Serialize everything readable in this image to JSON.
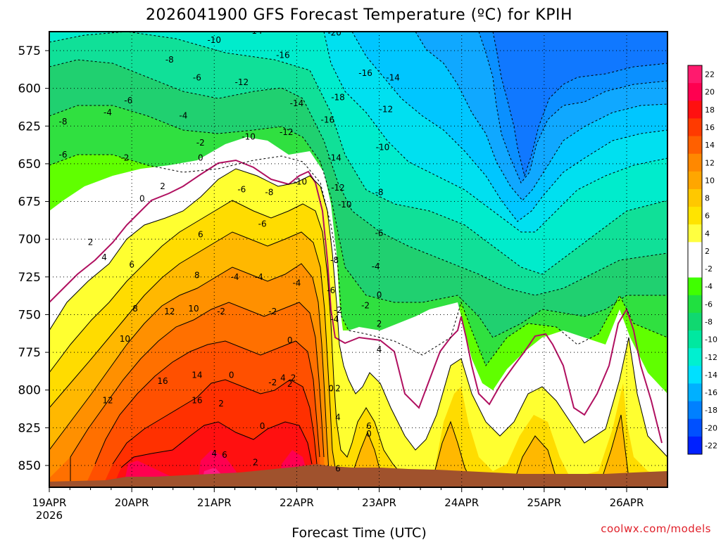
{
  "chart_data": {
    "type": "heatmap",
    "title": "2026041900 GFS Forecast Temperature (ºC) for KPIH",
    "xlabel": "Forecast Time (UTC)",
    "ylabel": "",
    "credit": "coolwx.com/models",
    "y_ticks": [
      "575",
      "600",
      "625",
      "650",
      "675",
      "700",
      "725",
      "750",
      "775",
      "800",
      "825",
      "850"
    ],
    "y_values": [
      575,
      600,
      625,
      650,
      675,
      700,
      725,
      750,
      775,
      800,
      825,
      850
    ],
    "ylim": [
      555,
      860
    ],
    "x_ticks": [
      "19APR",
      "20APR",
      "21APR",
      "22APR",
      "23APR",
      "24APR",
      "25APR",
      "26APR"
    ],
    "x_year": "2026",
    "xlim_hours": [
      0,
      180
    ],
    "colorbar_ticks": [
      "22",
      "20",
      "18",
      "16",
      "14",
      "12",
      "10",
      "8",
      "6",
      "4",
      "2",
      "-2",
      "-4",
      "-6",
      "-8",
      "-10",
      "-12",
      "-14",
      "-16",
      "-18",
      "-20",
      "-22"
    ],
    "colorbar_colors": [
      "#ff1a6e",
      "#ff0050",
      "#ff1010",
      "#ff3a00",
      "#ff6000",
      "#ff8800",
      "#ffa600",
      "#ffc800",
      "#ffe400",
      "#ffff40",
      "#ffffff",
      "#ffffff",
      "#40ff00",
      "#20e040",
      "#10d870",
      "#00e8a0",
      "#00f0d0",
      "#00e0ff",
      "#00b0ff",
      "#0080ff",
      "#0050ff",
      "#0020ff"
    ],
    "contour_labels": [
      {
        "v": "-14",
        "t": 60,
        "p": 562
      },
      {
        "v": "-20",
        "t": 83,
        "p": 563
      },
      {
        "v": "-10",
        "t": 48,
        "p": 568
      },
      {
        "v": "-16",
        "t": 68,
        "p": 578
      },
      {
        "v": "-8",
        "t": 35,
        "p": 581
      },
      {
        "v": "-16",
        "t": 92,
        "p": 590
      },
      {
        "v": "-6",
        "t": 43,
        "p": 593
      },
      {
        "v": "-12",
        "t": 56,
        "p": 596
      },
      {
        "v": "-14",
        "t": 100,
        "p": 593
      },
      {
        "v": "-18",
        "t": 84,
        "p": 606
      },
      {
        "v": "-14",
        "t": 72,
        "p": 610
      },
      {
        "v": "-6",
        "t": 23,
        "p": 608
      },
      {
        "v": "-12",
        "t": 98,
        "p": 614
      },
      {
        "v": "-4",
        "t": 17,
        "p": 616
      },
      {
        "v": "-4",
        "t": 39,
        "p": 618
      },
      {
        "v": "-16",
        "t": 81,
        "p": 621
      },
      {
        "v": "-8",
        "t": 4,
        "p": 622
      },
      {
        "v": "-12",
        "t": 69,
        "p": 629
      },
      {
        "v": "-10",
        "t": 58,
        "p": 632
      },
      {
        "v": "-2",
        "t": 44,
        "p": 636
      },
      {
        "v": "-10",
        "t": 97,
        "p": 639
      },
      {
        "v": "-6",
        "t": 4,
        "p": 644
      },
      {
        "v": "-2",
        "t": 22,
        "p": 646
      },
      {
        "v": "-14",
        "t": 83,
        "p": 646
      },
      {
        "v": "0",
        "t": 44,
        "p": 646
      },
      {
        "v": "-10",
        "t": 73,
        "p": 662
      },
      {
        "v": "-12",
        "t": 84,
        "p": 666
      },
      {
        "v": "-6",
        "t": 56,
        "p": 667
      },
      {
        "v": "-8",
        "t": 64,
        "p": 669
      },
      {
        "v": "2",
        "t": 33,
        "p": 665
      },
      {
        "v": "-8",
        "t": 96,
        "p": 669
      },
      {
        "v": "0",
        "t": 27,
        "p": 673
      },
      {
        "v": "-10",
        "t": 86,
        "p": 677
      },
      {
        "v": "-6",
        "t": 62,
        "p": 690
      },
      {
        "v": "6",
        "t": 44,
        "p": 697
      },
      {
        "v": "-6",
        "t": 96,
        "p": 696
      },
      {
        "v": "2",
        "t": 12,
        "p": 702
      },
      {
        "v": "4",
        "t": 16,
        "p": 712
      },
      {
        "v": "-8",
        "t": 83,
        "p": 714
      },
      {
        "v": "6",
        "t": 24,
        "p": 717
      },
      {
        "v": "-4",
        "t": 95,
        "p": 718
      },
      {
        "v": "8",
        "t": 43,
        "p": 724
      },
      {
        "v": "-4",
        "t": 54,
        "p": 725
      },
      {
        "v": "-4",
        "t": 61,
        "p": 725
      },
      {
        "v": "-4",
        "t": 72,
        "p": 729
      },
      {
        "v": "-6",
        "t": 82,
        "p": 734
      },
      {
        "v": "-2",
        "t": 50,
        "p": 748
      },
      {
        "v": "-2",
        "t": 65,
        "p": 748
      },
      {
        "v": "10",
        "t": 42,
        "p": 746
      },
      {
        "v": "8",
        "t": 25,
        "p": 746
      },
      {
        "v": "12",
        "t": 35,
        "p": 748
      },
      {
        "v": "0",
        "t": 96,
        "p": 737
      },
      {
        "v": "-2",
        "t": 92,
        "p": 744
      },
      {
        "v": "-2",
        "t": 84,
        "p": 747
      },
      {
        "v": "-4",
        "t": 83,
        "p": 753
      },
      {
        "v": "10",
        "t": 22,
        "p": 766
      },
      {
        "v": "2",
        "t": 96,
        "p": 756
      },
      {
        "v": "0",
        "t": 70,
        "p": 767
      },
      {
        "v": "0",
        "t": 53,
        "p": 790
      },
      {
        "v": "14",
        "t": 43,
        "p": 790
      },
      {
        "v": "4",
        "t": 68,
        "p": 792
      },
      {
        "v": "2",
        "t": 71,
        "p": 792
      },
      {
        "v": "4",
        "t": 96,
        "p": 773
      },
      {
        "v": "-2",
        "t": 65,
        "p": 795
      },
      {
        "v": "16",
        "t": 33,
        "p": 794
      },
      {
        "v": "2",
        "t": 70,
        "p": 796
      },
      {
        "v": "0",
        "t": 82,
        "p": 799
      },
      {
        "v": "2",
        "t": 84,
        "p": 799
      },
      {
        "v": "12",
        "t": 17,
        "p": 807
      },
      {
        "v": "16",
        "t": 43,
        "p": 807
      },
      {
        "v": "2",
        "t": 50,
        "p": 809
      },
      {
        "v": "4",
        "t": 84,
        "p": 818
      },
      {
        "v": "0",
        "t": 62,
        "p": 824
      },
      {
        "v": "0",
        "t": 93,
        "p": 829
      },
      {
        "v": "6",
        "t": 93,
        "p": 824
      },
      {
        "v": "4",
        "t": 48,
        "p": 842
      },
      {
        "v": "6",
        "t": 51,
        "p": 843
      },
      {
        "v": "2",
        "t": 60,
        "p": 848
      },
      {
        "v": "6",
        "t": 84,
        "p": 852
      }
    ]
  }
}
